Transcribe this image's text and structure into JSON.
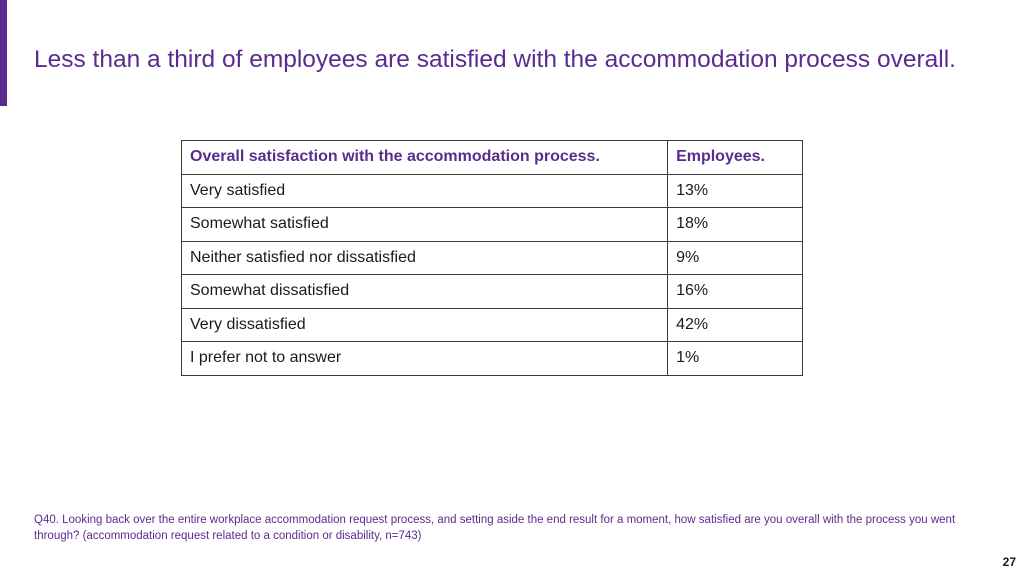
{
  "slide": {
    "title": "Less than a third of employees are satisfied with the accommodation process overall.",
    "accent_color": "#5b2c8f"
  },
  "table": {
    "headers": [
      "Overall satisfaction with the accommodation process.",
      "Employees."
    ],
    "rows": [
      [
        "Very satisfied",
        "13%"
      ],
      [
        "Somewhat satisfied",
        "18%"
      ],
      [
        "Neither satisfied nor dissatisfied",
        "9%"
      ],
      [
        "Somewhat dissatisfied",
        "16%"
      ],
      [
        "Very dissatisfied",
        "42%"
      ],
      [
        "I prefer not to answer",
        "1%"
      ]
    ]
  },
  "footnote": "Q40. Looking back over the entire workplace accommodation request process, and setting aside the end result for a moment, how satisfied are you overall with the process you went through? (accommodation request related to a condition or disability, n=743)",
  "page_number": "27"
}
